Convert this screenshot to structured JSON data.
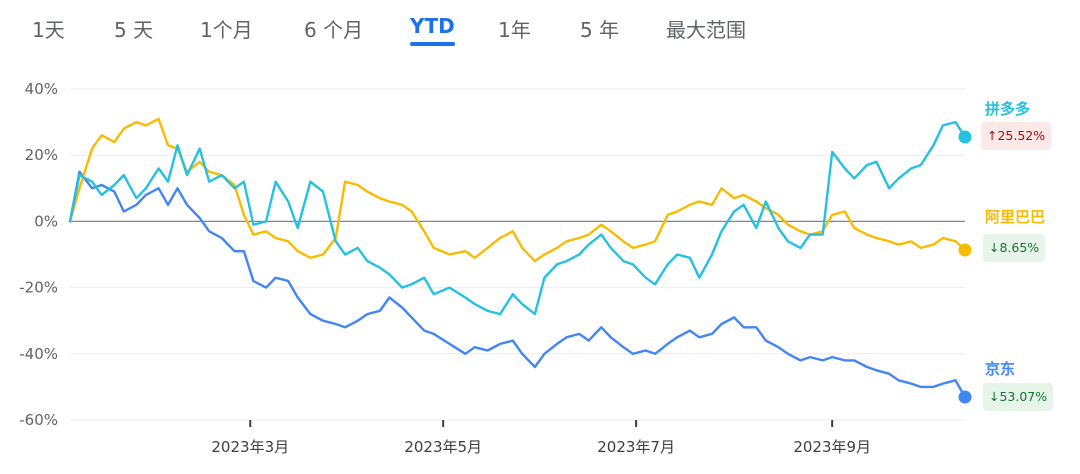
{
  "tabs": [
    {
      "label": "1天",
      "active": false
    },
    {
      "label": "5 天",
      "active": false
    },
    {
      "label": "1个月",
      "active": false
    },
    {
      "label": "6 个月",
      "active": false
    },
    {
      "label": "YTD",
      "active": true
    },
    {
      "label": "1年",
      "active": false
    },
    {
      "label": "5 年",
      "active": false
    },
    {
      "label": "最大范围",
      "active": false
    }
  ],
  "chart_data": {
    "type": "line",
    "ylim": [
      -60,
      40
    ],
    "ytick_labels": [
      "40%",
      "20%",
      "0%",
      "-20%",
      "-40%",
      "-60%"
    ],
    "yticks": [
      40,
      20,
      0,
      -20,
      -40,
      -60
    ],
    "xtick_labels": [
      "2023年3月",
      "2023年5月",
      "2023年7月",
      "2023年9月"
    ],
    "xticks": [
      "2023-03-01",
      "2023-05-01",
      "2023-07-01",
      "2023-09-01"
    ],
    "x_range": [
      "2023-01-03",
      "2023-10-13"
    ],
    "grid": true,
    "baseline": 0,
    "series": [
      {
        "name": "拼多多",
        "color": "#24c1e0",
        "change_label": "↑25.52%",
        "change_direction": "up",
        "points": [
          [
            "2023-01-03",
            0
          ],
          [
            "2023-01-06",
            14
          ],
          [
            "2023-01-10",
            12
          ],
          [
            "2023-01-13",
            8
          ],
          [
            "2023-01-17",
            11
          ],
          [
            "2023-01-20",
            14
          ],
          [
            "2023-01-24",
            7
          ],
          [
            "2023-01-27",
            10
          ],
          [
            "2023-01-31",
            16
          ],
          [
            "2023-02-03",
            12
          ],
          [
            "2023-02-06",
            23
          ],
          [
            "2023-02-09",
            14
          ],
          [
            "2023-02-13",
            22
          ],
          [
            "2023-02-16",
            12
          ],
          [
            "2023-02-20",
            14
          ],
          [
            "2023-02-24",
            10
          ],
          [
            "2023-02-27",
            12
          ],
          [
            "2023-03-02",
            -1
          ],
          [
            "2023-03-06",
            0
          ],
          [
            "2023-03-09",
            12
          ],
          [
            "2023-03-13",
            6
          ],
          [
            "2023-03-16",
            -2
          ],
          [
            "2023-03-20",
            12
          ],
          [
            "2023-03-24",
            9
          ],
          [
            "2023-03-28",
            -6
          ],
          [
            "2023-03-31",
            -10
          ],
          [
            "2023-04-04",
            -8
          ],
          [
            "2023-04-07",
            -12
          ],
          [
            "2023-04-11",
            -14
          ],
          [
            "2023-04-14",
            -16
          ],
          [
            "2023-04-18",
            -20
          ],
          [
            "2023-04-21",
            -19
          ],
          [
            "2023-04-25",
            -17
          ],
          [
            "2023-04-28",
            -22
          ],
          [
            "2023-05-03",
            -20
          ],
          [
            "2023-05-08",
            -23
          ],
          [
            "2023-05-11",
            -25
          ],
          [
            "2023-05-15",
            -27
          ],
          [
            "2023-05-19",
            -28
          ],
          [
            "2023-05-23",
            -22
          ],
          [
            "2023-05-26",
            -25
          ],
          [
            "2023-05-30",
            -28
          ],
          [
            "2023-06-02",
            -17
          ],
          [
            "2023-06-06",
            -13
          ],
          [
            "2023-06-09",
            -12
          ],
          [
            "2023-06-13",
            -10
          ],
          [
            "2023-06-16",
            -7
          ],
          [
            "2023-06-20",
            -4
          ],
          [
            "2023-06-23",
            -8
          ],
          [
            "2023-06-27",
            -12
          ],
          [
            "2023-06-30",
            -13
          ],
          [
            "2023-07-04",
            -17
          ],
          [
            "2023-07-07",
            -19
          ],
          [
            "2023-07-11",
            -13
          ],
          [
            "2023-07-14",
            -10
          ],
          [
            "2023-07-18",
            -11
          ],
          [
            "2023-07-21",
            -17
          ],
          [
            "2023-07-25",
            -10
          ],
          [
            "2023-07-28",
            -3
          ],
          [
            "2023-08-01",
            3
          ],
          [
            "2023-08-04",
            5
          ],
          [
            "2023-08-08",
            -2
          ],
          [
            "2023-08-11",
            6
          ],
          [
            "2023-08-15",
            -2
          ],
          [
            "2023-08-18",
            -6
          ],
          [
            "2023-08-22",
            -8
          ],
          [
            "2023-08-25",
            -4
          ],
          [
            "2023-08-29",
            -4
          ],
          [
            "2023-09-01",
            21
          ],
          [
            "2023-09-05",
            16
          ],
          [
            "2023-09-08",
            13
          ],
          [
            "2023-09-12",
            17
          ],
          [
            "2023-09-15",
            18
          ],
          [
            "2023-09-19",
            10
          ],
          [
            "2023-09-22",
            13
          ],
          [
            "2023-09-26",
            16
          ],
          [
            "2023-09-29",
            17
          ],
          [
            "2023-10-03",
            23
          ],
          [
            "2023-10-06",
            29
          ],
          [
            "2023-10-10",
            30
          ],
          [
            "2023-10-13",
            25.5
          ]
        ]
      },
      {
        "name": "阿里巴巴",
        "color": "#f9bb00",
        "change_label": "↓8.65%",
        "change_direction": "down",
        "points": [
          [
            "2023-01-03",
            0
          ],
          [
            "2023-01-06",
            10
          ],
          [
            "2023-01-10",
            22
          ],
          [
            "2023-01-13",
            26
          ],
          [
            "2023-01-17",
            24
          ],
          [
            "2023-01-20",
            28
          ],
          [
            "2023-01-24",
            30
          ],
          [
            "2023-01-27",
            29
          ],
          [
            "2023-01-31",
            31
          ],
          [
            "2023-02-03",
            23
          ],
          [
            "2023-02-06",
            22
          ],
          [
            "2023-02-09",
            15
          ],
          [
            "2023-02-13",
            18
          ],
          [
            "2023-02-16",
            15
          ],
          [
            "2023-02-20",
            14
          ],
          [
            "2023-02-24",
            11
          ],
          [
            "2023-02-27",
            2
          ],
          [
            "2023-03-02",
            -4
          ],
          [
            "2023-03-06",
            -3
          ],
          [
            "2023-03-09",
            -5
          ],
          [
            "2023-03-13",
            -6
          ],
          [
            "2023-03-16",
            -9
          ],
          [
            "2023-03-20",
            -11
          ],
          [
            "2023-03-24",
            -10
          ],
          [
            "2023-03-28",
            -5
          ],
          [
            "2023-03-31",
            12
          ],
          [
            "2023-04-04",
            11
          ],
          [
            "2023-04-07",
            9
          ],
          [
            "2023-04-11",
            7
          ],
          [
            "2023-04-14",
            6
          ],
          [
            "2023-04-18",
            5
          ],
          [
            "2023-04-21",
            3
          ],
          [
            "2023-04-25",
            -3
          ],
          [
            "2023-04-28",
            -8
          ],
          [
            "2023-05-03",
            -10
          ],
          [
            "2023-05-08",
            -9
          ],
          [
            "2023-05-11",
            -11
          ],
          [
            "2023-05-15",
            -8
          ],
          [
            "2023-05-19",
            -5
          ],
          [
            "2023-05-23",
            -3
          ],
          [
            "2023-05-26",
            -8
          ],
          [
            "2023-05-30",
            -12
          ],
          [
            "2023-06-02",
            -10
          ],
          [
            "2023-06-06",
            -8
          ],
          [
            "2023-06-09",
            -6
          ],
          [
            "2023-06-13",
            -5
          ],
          [
            "2023-06-16",
            -4
          ],
          [
            "2023-06-20",
            -1
          ],
          [
            "2023-06-23",
            -3
          ],
          [
            "2023-06-27",
            -6
          ],
          [
            "2023-06-30",
            -8
          ],
          [
            "2023-07-04",
            -7
          ],
          [
            "2023-07-07",
            -6
          ],
          [
            "2023-07-11",
            2
          ],
          [
            "2023-07-14",
            3
          ],
          [
            "2023-07-18",
            5
          ],
          [
            "2023-07-21",
            6
          ],
          [
            "2023-07-25",
            5
          ],
          [
            "2023-07-28",
            10
          ],
          [
            "2023-08-01",
            7
          ],
          [
            "2023-08-04",
            8
          ],
          [
            "2023-08-08",
            6
          ],
          [
            "2023-08-11",
            4
          ],
          [
            "2023-08-15",
            2
          ],
          [
            "2023-08-18",
            -1
          ],
          [
            "2023-08-22",
            -3
          ],
          [
            "2023-08-25",
            -4
          ],
          [
            "2023-08-29",
            -3
          ],
          [
            "2023-09-01",
            2
          ],
          [
            "2023-09-05",
            3
          ],
          [
            "2023-09-08",
            -2
          ],
          [
            "2023-09-12",
            -4
          ],
          [
            "2023-09-15",
            -5
          ],
          [
            "2023-09-19",
            -6
          ],
          [
            "2023-09-22",
            -7
          ],
          [
            "2023-09-26",
            -6
          ],
          [
            "2023-09-29",
            -8
          ],
          [
            "2023-10-03",
            -7
          ],
          [
            "2023-10-06",
            -5
          ],
          [
            "2023-10-10",
            -6
          ],
          [
            "2023-10-13",
            -8.65
          ]
        ]
      },
      {
        "name": "京东",
        "color": "#4285f4",
        "change_label": "↓53.07%",
        "change_direction": "down",
        "points": [
          [
            "2023-01-03",
            0
          ],
          [
            "2023-01-06",
            15
          ],
          [
            "2023-01-10",
            10
          ],
          [
            "2023-01-13",
            11
          ],
          [
            "2023-01-17",
            9
          ],
          [
            "2023-01-20",
            3
          ],
          [
            "2023-01-24",
            5
          ],
          [
            "2023-01-27",
            8
          ],
          [
            "2023-01-31",
            10
          ],
          [
            "2023-02-03",
            5
          ],
          [
            "2023-02-06",
            10
          ],
          [
            "2023-02-09",
            5
          ],
          [
            "2023-02-13",
            1
          ],
          [
            "2023-02-16",
            -3
          ],
          [
            "2023-02-20",
            -5
          ],
          [
            "2023-02-24",
            -9
          ],
          [
            "2023-02-27",
            -9
          ],
          [
            "2023-03-02",
            -18
          ],
          [
            "2023-03-06",
            -20
          ],
          [
            "2023-03-09",
            -17
          ],
          [
            "2023-03-13",
            -18
          ],
          [
            "2023-03-16",
            -23
          ],
          [
            "2023-03-20",
            -28
          ],
          [
            "2023-03-24",
            -30
          ],
          [
            "2023-03-28",
            -31
          ],
          [
            "2023-03-31",
            -32
          ],
          [
            "2023-04-04",
            -30
          ],
          [
            "2023-04-07",
            -28
          ],
          [
            "2023-04-11",
            -27
          ],
          [
            "2023-04-14",
            -23
          ],
          [
            "2023-04-18",
            -26
          ],
          [
            "2023-04-21",
            -29
          ],
          [
            "2023-04-25",
            -33
          ],
          [
            "2023-04-28",
            -34
          ],
          [
            "2023-05-03",
            -37
          ],
          [
            "2023-05-08",
            -40
          ],
          [
            "2023-05-11",
            -38
          ],
          [
            "2023-05-15",
            -39
          ],
          [
            "2023-05-19",
            -37
          ],
          [
            "2023-05-23",
            -36
          ],
          [
            "2023-05-26",
            -40
          ],
          [
            "2023-05-30",
            -44
          ],
          [
            "2023-06-02",
            -40
          ],
          [
            "2023-06-06",
            -37
          ],
          [
            "2023-06-09",
            -35
          ],
          [
            "2023-06-13",
            -34
          ],
          [
            "2023-06-16",
            -36
          ],
          [
            "2023-06-20",
            -32
          ],
          [
            "2023-06-23",
            -35
          ],
          [
            "2023-06-27",
            -38
          ],
          [
            "2023-06-30",
            -40
          ],
          [
            "2023-07-04",
            -39
          ],
          [
            "2023-07-07",
            -40
          ],
          [
            "2023-07-11",
            -37
          ],
          [
            "2023-07-14",
            -35
          ],
          [
            "2023-07-18",
            -33
          ],
          [
            "2023-07-21",
            -35
          ],
          [
            "2023-07-25",
            -34
          ],
          [
            "2023-07-28",
            -31
          ],
          [
            "2023-08-01",
            -29
          ],
          [
            "2023-08-04",
            -32
          ],
          [
            "2023-08-08",
            -32
          ],
          [
            "2023-08-11",
            -36
          ],
          [
            "2023-08-15",
            -38
          ],
          [
            "2023-08-18",
            -40
          ],
          [
            "2023-08-22",
            -42
          ],
          [
            "2023-08-25",
            -41
          ],
          [
            "2023-08-29",
            -42
          ],
          [
            "2023-09-01",
            -41
          ],
          [
            "2023-09-05",
            -42
          ],
          [
            "2023-09-08",
            -42
          ],
          [
            "2023-09-12",
            -44
          ],
          [
            "2023-09-15",
            -45
          ],
          [
            "2023-09-19",
            -46
          ],
          [
            "2023-09-22",
            -48
          ],
          [
            "2023-09-26",
            -49
          ],
          [
            "2023-09-29",
            -50
          ],
          [
            "2023-10-03",
            -50
          ],
          [
            "2023-10-06",
            -49
          ],
          [
            "2023-10-10",
            -48
          ],
          [
            "2023-10-13",
            -53.07
          ]
        ]
      }
    ]
  }
}
